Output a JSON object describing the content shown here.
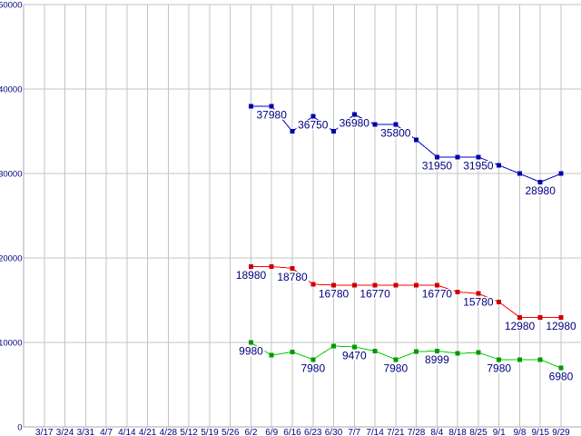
{
  "chart_data": {
    "type": "line",
    "title": "",
    "xlabel": "",
    "ylabel": "",
    "ylim": [
      0,
      50000
    ],
    "grid": true,
    "legend_position": "none",
    "grid_color": "#c4c4c4",
    "axis_color": "#a8a8a8",
    "tick_label_color": "#000080",
    "point_label_color": "#000080",
    "x_labels": [
      "3/17",
      "3/24",
      "3/31",
      "4/7",
      "4/14",
      "4/21",
      "4/28",
      "5/12",
      "5/19",
      "5/26",
      "6/2",
      "6/9",
      "6/16",
      "6/23",
      "6/30",
      "7/7",
      "7/14",
      "7/21",
      "7/28",
      "8/4",
      "8/18",
      "8/25",
      "9/1",
      "9/8",
      "9/15",
      "9/29"
    ],
    "y_ticks": [
      0,
      10000,
      20000,
      30000,
      40000,
      50000
    ],
    "series_x": [
      "6/2",
      "6/9",
      "6/16",
      "6/23",
      "6/30",
      "7/7",
      "7/14",
      "7/21",
      "7/28",
      "8/4",
      "8/18",
      "8/25",
      "9/1",
      "9/8",
      "9/15",
      "9/29"
    ],
    "series_start_label_index": 10,
    "series": [
      {
        "name": "series-blue",
        "color": "#0000cc",
        "marker_color": "#0000aa",
        "values": [
          37980,
          37980,
          34980,
          36750,
          34980,
          36980,
          35800,
          35800,
          33980,
          31950,
          31950,
          31950,
          30980,
          29980,
          28980,
          29980
        ],
        "point_labels": [
          null,
          "37980",
          null,
          "36750",
          null,
          "36980",
          null,
          "35800",
          null,
          "31950",
          null,
          "31950",
          null,
          null,
          "28980",
          null
        ]
      },
      {
        "name": "series-red",
        "color": "#ff0000",
        "marker_color": "#cc0000",
        "values": [
          18980,
          18980,
          18780,
          16880,
          16780,
          16780,
          16770,
          16770,
          16770,
          16770,
          15980,
          15780,
          14780,
          12980,
          12980,
          12980
        ],
        "point_labels": [
          "18980",
          null,
          "18780",
          null,
          "16780",
          null,
          "16770",
          null,
          null,
          "16770",
          null,
          "15780",
          null,
          "12980",
          null,
          "12980"
        ]
      },
      {
        "name": "series-green",
        "color": "#00cc00",
        "marker_color": "#009900",
        "values": [
          9980,
          8480,
          8880,
          7980,
          9570,
          9470,
          8980,
          7980,
          8899,
          8999,
          8699,
          8799,
          7980,
          7980,
          7980,
          6980
        ],
        "point_labels": [
          "9980",
          null,
          null,
          "7980",
          null,
          "9470",
          null,
          "7980",
          null,
          "8999",
          null,
          null,
          "7980",
          null,
          null,
          "6980"
        ]
      }
    ]
  }
}
